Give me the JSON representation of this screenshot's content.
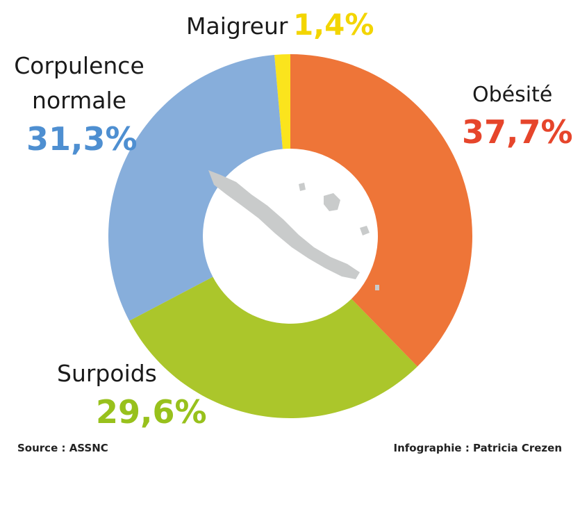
{
  "chart_data": {
    "type": "donut",
    "categories": [
      "Obésité",
      "Surpoids",
      "Corpulence normale",
      "Maigreur"
    ],
    "values": [
      37.7,
      29.6,
      31.3,
      1.4
    ],
    "value_labels": [
      "37,7%",
      "29,6%",
      "31,3%",
      "1,4%"
    ],
    "colors": [
      "#ee7538",
      "#abc62b",
      "#87aedb",
      "#fbe41d"
    ],
    "label_colors": [
      "#e6452b",
      "#98c11c",
      "#4e8fd1",
      "#f3d500"
    ],
    "source": "Source : ASSNC",
    "credit": "Infographie : Patricia Crezen"
  }
}
